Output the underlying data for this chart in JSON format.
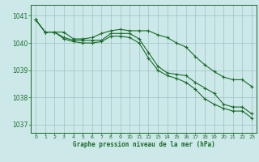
{
  "background_color": "#cce8e8",
  "grid_color": "#9dc4c4",
  "line_color": "#1a6b2a",
  "xlabel": "Graphe pression niveau de la mer (hPa)",
  "ylim": [
    1036.7,
    1041.4
  ],
  "xlim": [
    -0.5,
    23.5
  ],
  "yticks": [
    1037,
    1038,
    1039,
    1040,
    1041
  ],
  "xticks": [
    0,
    1,
    2,
    3,
    4,
    5,
    6,
    7,
    8,
    9,
    10,
    11,
    12,
    13,
    14,
    15,
    16,
    17,
    18,
    19,
    20,
    21,
    22,
    23
  ],
  "series1": [
    1040.85,
    1040.4,
    1040.4,
    1040.4,
    1040.15,
    1040.15,
    1040.2,
    1040.35,
    1040.45,
    1040.5,
    1040.45,
    1040.45,
    1040.45,
    1040.3,
    1040.2,
    1040.0,
    1039.85,
    1039.5,
    1039.2,
    1038.95,
    1038.75,
    1038.65,
    1038.65,
    1038.4
  ],
  "series2": [
    1040.85,
    1040.4,
    1040.4,
    1040.2,
    1040.1,
    1040.1,
    1040.1,
    1040.1,
    1040.35,
    1040.35,
    1040.35,
    1040.15,
    1039.65,
    1039.15,
    1038.9,
    1038.85,
    1038.8,
    1038.55,
    1038.35,
    1038.15,
    1037.75,
    1037.65,
    1037.65,
    1037.4
  ],
  "series3": [
    1040.85,
    1040.4,
    1040.4,
    1040.15,
    1040.05,
    1040.0,
    1040.0,
    1040.05,
    1040.25,
    1040.25,
    1040.2,
    1040.0,
    1039.45,
    1039.0,
    1038.8,
    1038.7,
    1038.55,
    1038.3,
    1037.95,
    1037.75,
    1037.6,
    1037.5,
    1037.5,
    1037.25
  ]
}
